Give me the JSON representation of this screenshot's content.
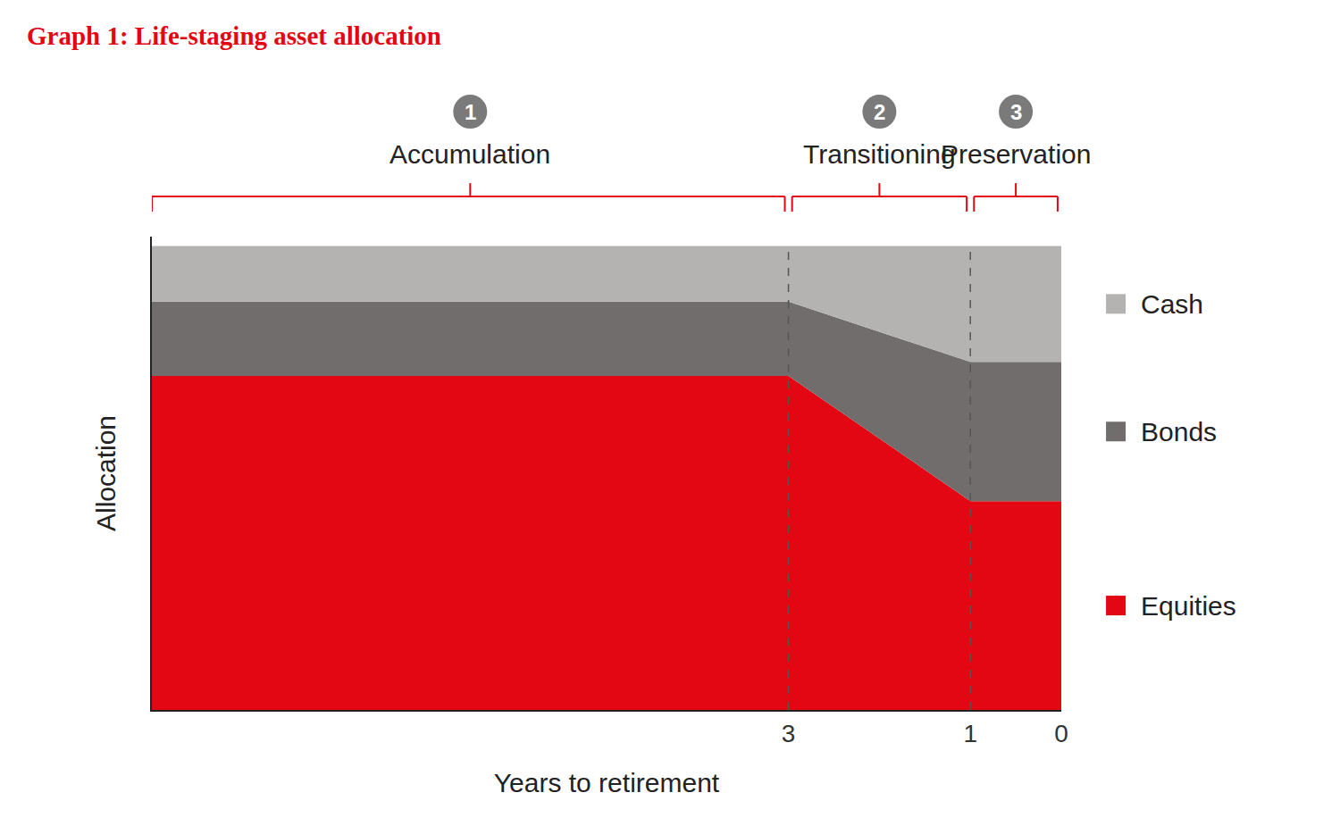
{
  "chart_data": {
    "type": "area",
    "title": "Graph 1: Life-staging asset allocation",
    "x_label": "Years to retirement",
    "y_label": "Allocation",
    "x": [
      10,
      3,
      1,
      0
    ],
    "stacked": true,
    "series": [
      {
        "name": "Equities",
        "color": "#e30613",
        "values": [
          72,
          72,
          45,
          45
        ]
      },
      {
        "name": "Bonds",
        "color": "#716d6d",
        "values": [
          16,
          16,
          30,
          30
        ]
      },
      {
        "name": "Cash",
        "color": "#b5b2b2",
        "values": [
          12,
          12,
          25,
          25
        ]
      }
    ],
    "xlim": [
      10,
      0
    ],
    "xticks": [
      3,
      1,
      0
    ],
    "ylim": [
      0,
      102
    ],
    "tick_labels": "x",
    "grid": false,
    "legend": "right",
    "phases": [
      {
        "number": 1,
        "label": "Accumulation",
        "from": 10,
        "to": 3
      },
      {
        "number": 2,
        "label": "Transitioning",
        "from": 3,
        "to": 1
      },
      {
        "number": 3,
        "label": "Preservation",
        "from": 1,
        "to": 0
      }
    ]
  }
}
